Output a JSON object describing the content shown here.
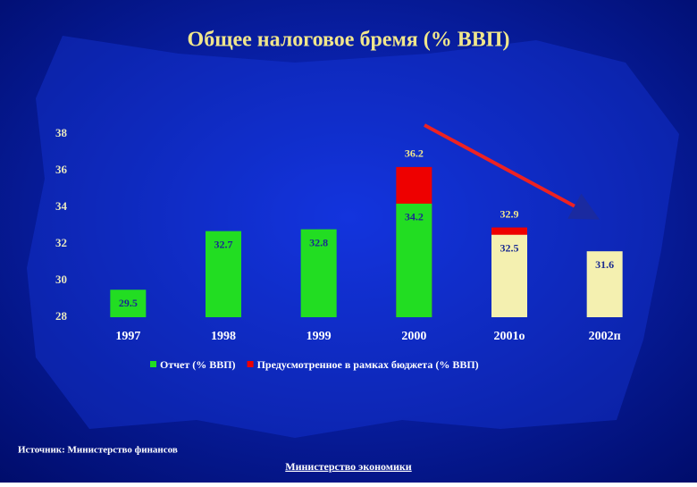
{
  "chart_data": {
    "type": "bar",
    "title": "Общее налоговое бремя (% ВВП)",
    "categories": [
      "1997",
      "1998",
      "1999",
      "2000",
      "2001о",
      "2002п"
    ],
    "series": [
      {
        "name": "Отчет (% ВВП)",
        "color": "#22dd22",
        "colors": [
          "#22dd22",
          "#22dd22",
          "#22dd22",
          "#22dd22",
          "#f4f0b0",
          "#f4f0b0"
        ],
        "values": [
          29.5,
          32.7,
          32.8,
          34.2,
          32.5,
          31.6
        ]
      },
      {
        "name": "Предусмотренное в рамках бюджета (% ВВП)",
        "color": "#ee0000",
        "values": [
          null,
          null,
          null,
          36.2,
          32.9,
          null
        ]
      }
    ],
    "ylim": [
      28,
      38
    ],
    "yticks": [
      28,
      30,
      32,
      34,
      36,
      38
    ],
    "source": "Источник: Министерство финансов",
    "footer": "Министерство экономики"
  }
}
